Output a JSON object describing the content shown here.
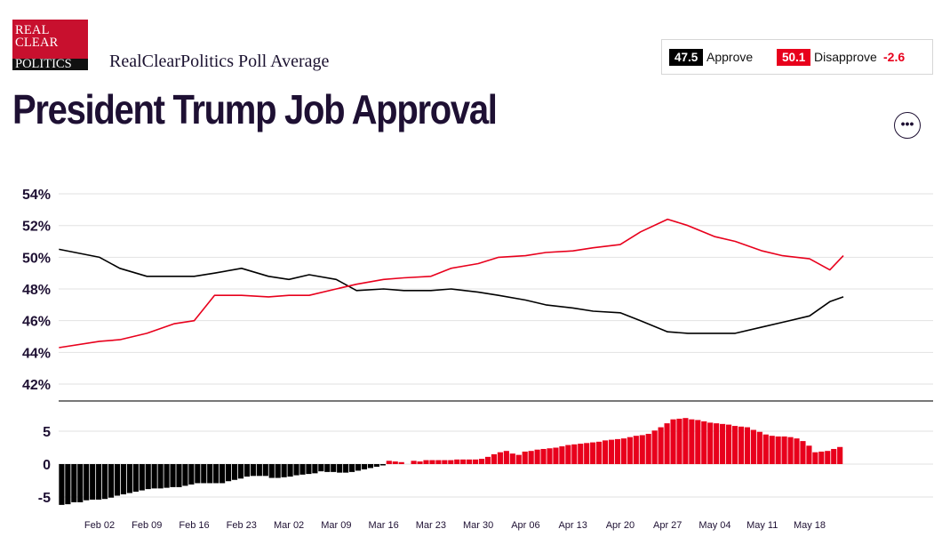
{
  "logo": {
    "line1": "REAL",
    "line2": "CLEAR",
    "line3": "POLITICS"
  },
  "source_title": "RealClearPolitics Poll Average",
  "page_title": "President Trump Job Approval",
  "more_icon": "ellipsis-icon",
  "summary": {
    "approve_value": "47.5",
    "approve_label": "Approve",
    "disapprove_value": "50.1",
    "disapprove_label": "Disapprove",
    "spread": "-2.6"
  },
  "colors": {
    "approve": "#000000",
    "disapprove": "#e8001c",
    "grid": "#e2e2e2",
    "axis": "#777777"
  },
  "chart_data": [
    {
      "type": "line",
      "x_type": "date",
      "x": [
        "Jan 27",
        "Feb 02",
        "Feb 05",
        "Feb 09",
        "Feb 13",
        "Feb 16",
        "Feb 19",
        "Feb 23",
        "Feb 27",
        "Mar 02",
        "Mar 05",
        "Mar 09",
        "Mar 12",
        "Mar 16",
        "Mar 19",
        "Mar 23",
        "Mar 26",
        "Mar 30",
        "Apr 02",
        "Apr 06",
        "Apr 09",
        "Apr 13",
        "Apr 16",
        "Apr 20",
        "Apr 23",
        "Apr 27",
        "Apr 30",
        "May 04",
        "May 07",
        "May 11",
        "May 14",
        "May 18",
        "May 21",
        "May 23"
      ],
      "series": [
        {
          "name": "Approve",
          "color": "#000000",
          "values": [
            50.5,
            50.0,
            49.3,
            48.8,
            48.8,
            48.8,
            49.0,
            49.3,
            48.8,
            48.6,
            48.9,
            48.6,
            47.9,
            48.0,
            47.9,
            47.9,
            48.0,
            47.8,
            47.6,
            47.3,
            47.0,
            46.8,
            46.6,
            46.5,
            46.0,
            45.3,
            45.2,
            45.2,
            45.2,
            45.6,
            45.9,
            46.3,
            47.2,
            47.5
          ]
        },
        {
          "name": "Disapprove",
          "color": "#e8001c",
          "values": [
            44.3,
            44.7,
            44.8,
            45.2,
            45.8,
            46.0,
            47.6,
            47.6,
            47.5,
            47.6,
            47.6,
            48.0,
            48.3,
            48.6,
            48.7,
            48.8,
            49.3,
            49.6,
            50.0,
            50.1,
            50.3,
            50.4,
            50.6,
            50.8,
            51.6,
            52.4,
            52.0,
            51.3,
            51.0,
            50.4,
            50.1,
            49.9,
            49.2,
            50.1
          ]
        }
      ],
      "y_ticks": [
        "54%",
        "52%",
        "50%",
        "48%",
        "46%",
        "44%",
        "42%"
      ],
      "ylim": [
        41,
        54.5
      ],
      "grid": true
    },
    {
      "type": "bar",
      "name": "Spread",
      "x_type": "date",
      "x_range": [
        "Jan 27",
        "May 23"
      ],
      "series": [
        {
          "name": "Spread",
          "values_negative_color": "#000000",
          "values_positive_color": "#e8001c",
          "values": [
            -6.2,
            -6.1,
            -5.8,
            -5.8,
            -5.5,
            -5.4,
            -5.4,
            -5.3,
            -5.1,
            -4.8,
            -4.6,
            -4.4,
            -4.2,
            -4.0,
            -3.8,
            -3.7,
            -3.7,
            -3.6,
            -3.5,
            -3.5,
            -3.3,
            -3.1,
            -2.9,
            -2.9,
            -2.9,
            -2.9,
            -2.9,
            -2.6,
            -2.4,
            -2.2,
            -1.9,
            -1.8,
            -1.8,
            -1.8,
            -2.1,
            -2.1,
            -2.0,
            -1.9,
            -1.7,
            -1.6,
            -1.5,
            -1.4,
            -1.1,
            -1.2,
            -1.2,
            -1.3,
            -1.3,
            -1.2,
            -1.0,
            -0.8,
            -0.6,
            -0.4,
            -0.2,
            0.5,
            0.4,
            0.3,
            0.0,
            0.5,
            0.4,
            0.6,
            0.6,
            0.6,
            0.6,
            0.6,
            0.7,
            0.7,
            0.7,
            0.7,
            0.8,
            1.1,
            1.5,
            1.8,
            2.0,
            1.6,
            1.4,
            1.9,
            2.0,
            2.2,
            2.3,
            2.4,
            2.5,
            2.7,
            2.9,
            3.0,
            3.1,
            3.2,
            3.3,
            3.4,
            3.6,
            3.7,
            3.8,
            3.9,
            4.1,
            4.3,
            4.4,
            4.6,
            5.1,
            5.6,
            6.2,
            6.8,
            6.9,
            7.0,
            6.8,
            6.7,
            6.5,
            6.3,
            6.2,
            6.1,
            6.0,
            5.8,
            5.7,
            5.6,
            5.2,
            4.9,
            4.5,
            4.3,
            4.2,
            4.2,
            4.1,
            3.9,
            3.5,
            2.8,
            1.8,
            1.9,
            2.0,
            2.3,
            2.6
          ]
        }
      ],
      "y_ticks": [
        "5",
        "0",
        "-5"
      ],
      "ylim": [
        -6.5,
        8.5
      ],
      "x_ticks": [
        "Feb 02",
        "Feb 09",
        "Feb 16",
        "Feb 23",
        "Mar 02",
        "Mar 09",
        "Mar 16",
        "Mar 23",
        "Mar 30",
        "Apr 06",
        "Apr 13",
        "Apr 20",
        "Apr 27",
        "May 04",
        "May 11",
        "May 18"
      ]
    }
  ]
}
